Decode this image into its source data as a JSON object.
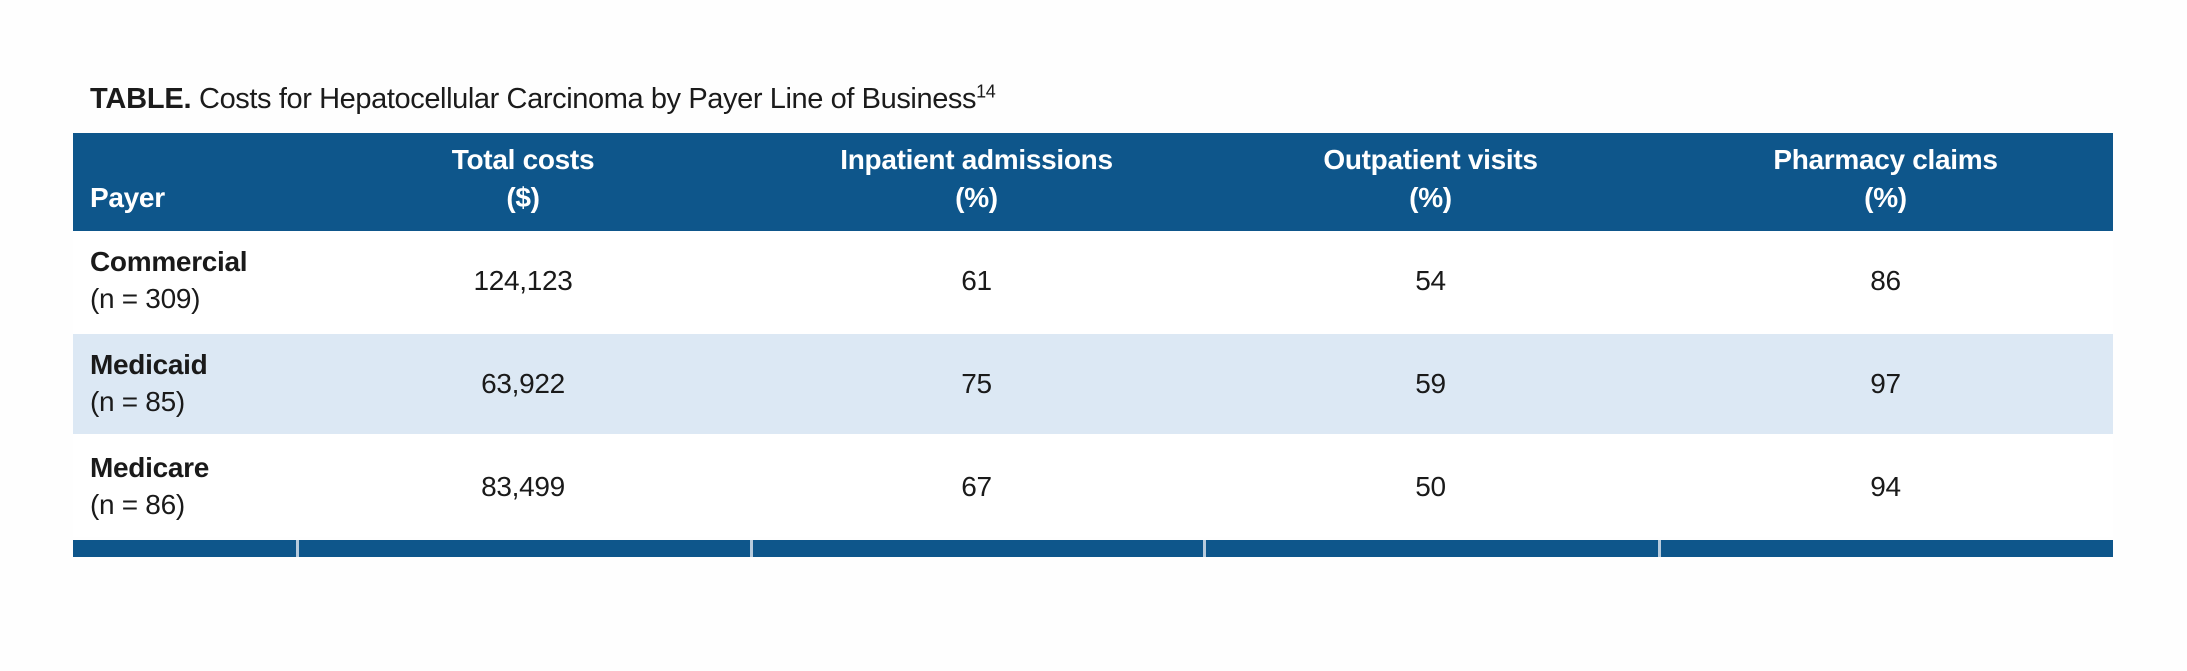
{
  "title": {
    "label": "TABLE.",
    "text": " Costs for Hepatocellular Carcinoma by Payer Line of Business",
    "superscript": "14"
  },
  "table": {
    "colors": {
      "header_bg": "#0e568b",
      "header_text": "#ffffff",
      "row_bg": "#ffffff",
      "row_alt_bg": "#dce8f4",
      "bottom_bar": "#0e568b",
      "bottom_bar_divider": "#b7cbdd",
      "body_text": "#1a1a1a"
    },
    "columns": [
      {
        "label": "Payer",
        "sub": ""
      },
      {
        "label": "Total costs",
        "sub": "($)"
      },
      {
        "label": "Inpatient admissions",
        "sub": "(%)"
      },
      {
        "label": "Outpatient visits",
        "sub": "(%)"
      },
      {
        "label": "Pharmacy claims",
        "sub": "(%)"
      }
    ],
    "rows": [
      {
        "payer": "Commercial",
        "n": "(n = 309)",
        "cells": [
          "124,123",
          "61",
          "54",
          "86"
        ]
      },
      {
        "payer": "Medicaid",
        "n": "(n = 85)",
        "cells": [
          "63,922",
          "75",
          "59",
          "97"
        ]
      },
      {
        "payer": "Medicare",
        "n": "(n = 86)",
        "cells": [
          "83,499",
          "67",
          "50",
          "94"
        ]
      }
    ]
  },
  "chart_data": {
    "type": "table",
    "title": "TABLE. Costs for Hepatocellular Carcinoma by Payer Line of Business [ref 14]",
    "columns": [
      "Payer",
      "Total costs ($)",
      "Inpatient admissions (%)",
      "Outpatient visits (%)",
      "Pharmacy claims (%)"
    ],
    "rows": [
      [
        "Commercial (n = 309)",
        124123,
        61,
        54,
        86
      ],
      [
        "Medicaid (n = 85)",
        63922,
        75,
        59,
        97
      ],
      [
        "Medicare (n = 86)",
        83499,
        67,
        50,
        94
      ]
    ]
  }
}
